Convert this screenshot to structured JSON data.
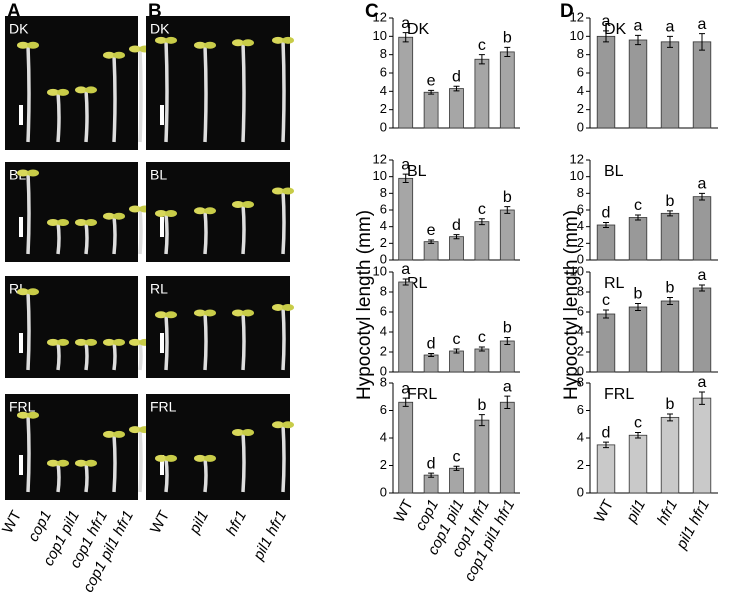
{
  "photos": [
    {
      "panel": "A",
      "conditions": [
        "DK",
        "BL",
        "RL",
        "FRL"
      ],
      "genotypes": [
        "WT",
        "cop1",
        "cop1 pil1",
        "cop1 hfr1",
        "cop1 pil1 hfr1"
      ]
    },
    {
      "panel": "B",
      "conditions": [
        "DK",
        "BL",
        "RL",
        "FRL"
      ],
      "genotypes": [
        "WT",
        "pil1",
        "hfr1",
        "pil1 hfr1"
      ]
    }
  ],
  "chart_panels": [
    {
      "panel": "C",
      "ylabel": "Hypocotyl length (mm)"
    },
    {
      "panel": "D",
      "ylabel": "Hypocotyl length (mm)"
    }
  ],
  "chart_data": [
    {
      "type": "bar",
      "label": "DK",
      "color": "#a6a6a6",
      "categories": [
        null,
        null,
        null,
        null,
        null
      ],
      "values": [
        9.9,
        3.9,
        4.3,
        7.5,
        8.3
      ],
      "errors": [
        0.5,
        0.2,
        0.25,
        0.5,
        0.5
      ],
      "annotations": [
        "a",
        "e",
        "d",
        "c",
        "b"
      ],
      "ylim": [
        0,
        12
      ],
      "yticks": [
        0,
        2,
        4,
        6,
        8,
        10,
        12
      ]
    },
    {
      "type": "bar",
      "label": "BL",
      "color": "#a6a6a6",
      "categories": [
        null,
        null,
        null,
        null,
        null
      ],
      "values": [
        9.8,
        2.2,
        2.8,
        4.6,
        6.0
      ],
      "errors": [
        0.5,
        0.2,
        0.25,
        0.35,
        0.4
      ],
      "annotations": [
        "a",
        "e",
        "d",
        "c",
        "b"
      ],
      "ylim": [
        0,
        12
      ],
      "yticks": [
        0,
        2,
        4,
        6,
        8,
        10,
        12
      ]
    },
    {
      "type": "bar",
      "label": "RL",
      "color": "#a6a6a6",
      "categories": [
        null,
        null,
        null,
        null,
        null
      ],
      "values": [
        9.0,
        1.7,
        2.1,
        2.3,
        3.1
      ],
      "errors": [
        0.3,
        0.15,
        0.2,
        0.2,
        0.35
      ],
      "annotations": [
        "a",
        "d",
        "c",
        "c",
        "b"
      ],
      "ylim": [
        0,
        10
      ],
      "yticks": [
        0,
        2,
        4,
        6,
        8,
        10
      ]
    },
    {
      "type": "bar",
      "label": "FRL",
      "color": "#a6a6a6",
      "categories": [
        "WT",
        "cop1",
        "cop1 pil1",
        "cop1 hfr1",
        "cop1 pil1 hfr1"
      ],
      "values": [
        6.6,
        1.3,
        1.8,
        5.3,
        6.6
      ],
      "errors": [
        0.3,
        0.15,
        0.15,
        0.4,
        0.45
      ],
      "annotations": [
        "a",
        "d",
        "c",
        "b",
        "a"
      ],
      "ylim": [
        0,
        8
      ],
      "yticks": [
        0,
        2,
        4,
        6,
        8
      ]
    },
    {
      "type": "bar",
      "label": "DK",
      "color": "#999999",
      "categories": [
        null,
        null,
        null,
        null
      ],
      "values": [
        10.0,
        9.6,
        9.4,
        9.4
      ],
      "errors": [
        0.6,
        0.5,
        0.6,
        0.9
      ],
      "annotations": [
        "a",
        "a",
        "a",
        "a"
      ],
      "ylim": [
        0,
        12
      ],
      "yticks": [
        0,
        2,
        4,
        6,
        8,
        10,
        12
      ]
    },
    {
      "type": "bar",
      "label": "BL",
      "color": "#999999",
      "categories": [
        null,
        null,
        null,
        null
      ],
      "values": [
        4.2,
        5.1,
        5.6,
        7.6
      ],
      "errors": [
        0.3,
        0.3,
        0.3,
        0.4
      ],
      "annotations": [
        "d",
        "c",
        "b",
        "a"
      ],
      "ylim": [
        0,
        12
      ],
      "yticks": [
        0,
        2,
        4,
        6,
        8,
        10,
        12
      ]
    },
    {
      "type": "bar",
      "label": "RL",
      "color": "#999999",
      "categories": [
        null,
        null,
        null,
        null
      ],
      "values": [
        5.8,
        6.5,
        7.1,
        8.4
      ],
      "errors": [
        0.4,
        0.35,
        0.35,
        0.3
      ],
      "annotations": [
        "c",
        "b",
        "b",
        "a"
      ],
      "ylim": [
        0,
        10
      ],
      "yticks": [
        0,
        2,
        4,
        6,
        8,
        10
      ]
    },
    {
      "type": "bar",
      "label": "FRL",
      "color": "#c9c9c9",
      "categories": [
        "WT",
        "pil1",
        "hfr1",
        "pil1 hfr1"
      ],
      "values": [
        3.5,
        4.2,
        5.5,
        6.9
      ],
      "errors": [
        0.2,
        0.2,
        0.25,
        0.45
      ],
      "annotations": [
        "d",
        "c",
        "b",
        "a"
      ],
      "ylim": [
        0,
        8
      ],
      "yticks": [
        0,
        2,
        4,
        6,
        8
      ]
    }
  ]
}
